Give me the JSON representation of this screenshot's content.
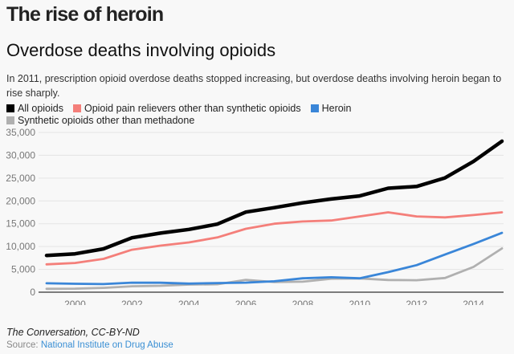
{
  "header": {
    "title": "The rise of heroin",
    "subtitle": "Overdose deaths involving opioids",
    "description": "In 2011, prescription opioid overdose deaths stopped increasing, but overdose deaths involving heroin began to rise sharply."
  },
  "footer": {
    "credit": "The Conversation, CC-BY-ND",
    "source_label": "Source:",
    "source_link": "National Institute on Drug Abuse"
  },
  "chart_data": {
    "type": "line",
    "title": "Overdose deaths involving opioids",
    "xlabel": "",
    "ylabel": "",
    "x": [
      1999,
      2000,
      2001,
      2002,
      2003,
      2004,
      2005,
      2006,
      2007,
      2008,
      2009,
      2010,
      2011,
      2012,
      2013,
      2014,
      2015
    ],
    "xticks": [
      "2000",
      "2002",
      "2004",
      "2006",
      "2008",
      "2010",
      "2012",
      "2014"
    ],
    "xtick_values": [
      2000,
      2002,
      2004,
      2006,
      2008,
      2010,
      2012,
      2014
    ],
    "yticks": [
      "0",
      "5,000",
      "10,000",
      "15,000",
      "20,000",
      "25,000",
      "30,000",
      "35,000"
    ],
    "ytick_values": [
      0,
      5000,
      10000,
      15000,
      20000,
      25000,
      30000,
      35000
    ],
    "ylim": [
      0,
      35000
    ],
    "xlim": [
      1999,
      2015
    ],
    "grid": true,
    "legend_position": "top-left",
    "series": [
      {
        "name": "All opioids",
        "color": "#000000",
        "values": [
          8050,
          8407,
          9496,
          11920,
          12940,
          13756,
          14918,
          17545,
          18516,
          19582,
          20422,
          21089,
          22784,
          23166,
          25052,
          28647,
          33091
        ]
      },
      {
        "name": "Opioid pain relievers other than synthetic opioids",
        "color": "#f47f7a",
        "values": [
          6100,
          6400,
          7300,
          9300,
          10200,
          10900,
          12000,
          13900,
          15000,
          15500,
          15700,
          16600,
          17500,
          16600,
          16400,
          16900,
          17500
        ]
      },
      {
        "name": "Heroin",
        "color": "#3a86d8",
        "values": [
          1960,
          1842,
          1779,
          2089,
          2080,
          1878,
          2009,
          2088,
          2399,
          3041,
          3278,
          3036,
          4397,
          5925,
          8257,
          10574,
          12989
        ]
      },
      {
        "name": "Synthetic opioids other than methadone",
        "color": "#b0b0b0",
        "values": [
          730,
          782,
          957,
          1295,
          1400,
          1664,
          1742,
          2707,
          2213,
          2306,
          2946,
          3007,
          2666,
          2628,
          3105,
          5544,
          9580
        ]
      }
    ]
  }
}
